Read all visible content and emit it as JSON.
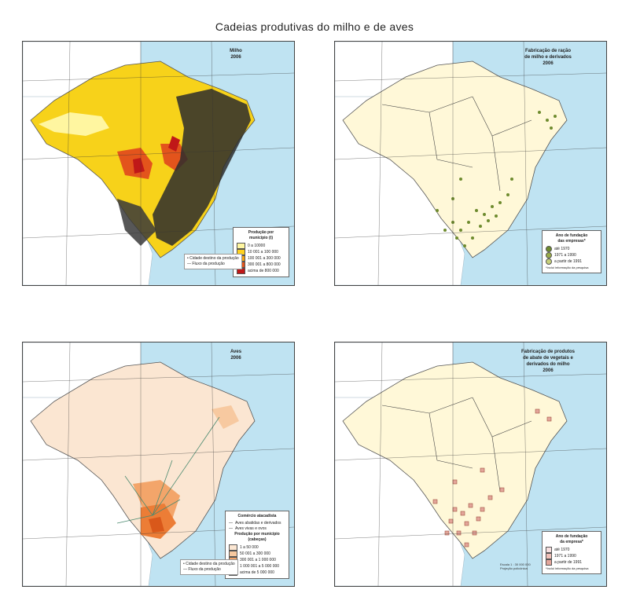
{
  "page": {
    "title": "Cadeias produtivas do milho e de aves"
  },
  "maps": [
    {
      "id": "milho",
      "title": "Milho\n2006",
      "legend": {
        "title": "Produção por\nmunicípio (t)",
        "classes": [
          {
            "label": "0 a 10000",
            "color": "#fff6a0"
          },
          {
            "label": "10 001 a 100 000",
            "color": "#ffd21f"
          },
          {
            "label": "100 001 a 300 000",
            "color": "#f5a411"
          },
          {
            "label": "300 001 a 800 000",
            "color": "#e3541c"
          },
          {
            "label": "acima de 800 000",
            "color": "#c01818"
          }
        ]
      },
      "flow_legend": {
        "item1": "Cidade destino da produção",
        "item2": "Fluxo da produção"
      }
    },
    {
      "id": "racao",
      "title": "Fabricação de ração\nde milho e derivados\n2006",
      "legend": {
        "title": "Ano de fundação\ndas empresas*",
        "classes": [
          {
            "label": "até 1970",
            "color": "#6e8b2e"
          },
          {
            "label": "1971 a 1990",
            "color": "#9aac48"
          },
          {
            "label": "a partir de 1991",
            "color": "#c7d07a"
          }
        ],
        "note": "*Inclui informação da pesquisa"
      }
    },
    {
      "id": "aves",
      "title": "Aves\n2006",
      "legend": {
        "title": "Comércio atacadista",
        "sub1": "Aves abatidas e derivados",
        "sub2": "Aves vivas e ovos",
        "title2": "Produção por município\n(cabeças)",
        "classes": [
          {
            "label": "1 a 50 000",
            "color": "#fbe6d2"
          },
          {
            "label": "50 001 a 300 000",
            "color": "#f7c9a0"
          },
          {
            "label": "300 001 a 1 000 000",
            "color": "#f3a56a"
          },
          {
            "label": "1 000 001 a 5 000 000",
            "color": "#ec7d36"
          },
          {
            "label": "acima de 5 000 000",
            "color": "#d9581a"
          }
        ]
      },
      "flow_legend": {
        "item1": "Cidade destino da produção",
        "item2": "Fluxo da produção"
      }
    },
    {
      "id": "abate",
      "title": "Fabricação de produtos\nde abate de vegetais e\nderivados do milho\n2006",
      "legend": {
        "title": "Ano de fundação\nda empresa*",
        "classes": [
          {
            "label": "até 1970",
            "color": "#f8e0e0"
          },
          {
            "label": "1971 a 1990",
            "color": "#f0c0b8"
          },
          {
            "label": "a partir de 1991",
            "color": "#e3a59a"
          }
        ],
        "note": "*Inclui informação da pesquisa"
      },
      "scale": "Escala 1 : 30 000 000\nProjeção policônica"
    }
  ]
}
